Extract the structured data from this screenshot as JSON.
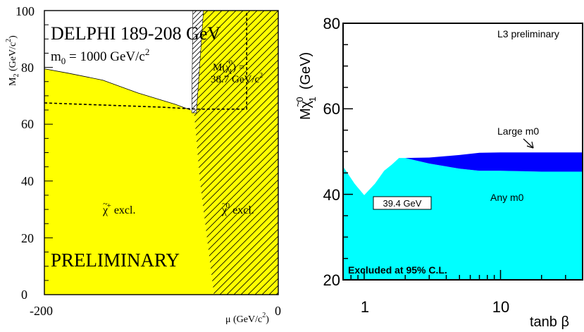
{
  "chart_data": [
    {
      "type": "area",
      "title": "DELPHI 189-208 GeV",
      "subtitle_prefix": "m",
      "subtitle_sub": "0",
      "subtitle_rest": " = 1000 GeV/c",
      "subtitle_sup": "2",
      "xlabel": "μ (GeV/c",
      "xlabel_sup": "2",
      "xlabel_end": ")",
      "ylabel": "M",
      "ylabel_sub": "2",
      "ylabel_rest": " (GeV/c",
      "ylabel_sup": "2",
      "ylabel_end": ")",
      "xlim": [
        -200,
        0
      ],
      "ylim": [
        0,
        100
      ],
      "xticks": [
        "-200",
        "0"
      ],
      "yticks": [
        "0",
        "20",
        "40",
        "60",
        "80",
        "100"
      ],
      "grid": false,
      "regions": [
        {
          "name": "chargino-excl",
          "color": "#ffff00",
          "label_main": "χ",
          "label_mark": "~",
          "label_sup": "+",
          "label_rest": " excl.",
          "boundary": [
            [
              -200,
              0
            ],
            [
              -200,
              79.5
            ],
            [
              -180,
              78
            ],
            [
              -150,
              75.5
            ],
            [
              -120,
              71
            ],
            [
              -88,
              67
            ],
            [
              -75,
              65
            ],
            [
              -72,
              64
            ],
            [
              -67,
              40
            ],
            [
              -58,
              10
            ],
            [
              -55,
              0
            ]
          ]
        },
        {
          "name": "neutralino-excl",
          "color": "#ffff00",
          "hatch": true,
          "label_main": "χ",
          "label_mark": "~",
          "label_sup": "0",
          "label_rest": " excl.",
          "boundary": [
            [
              -72,
              64
            ],
            [
              -64,
              100
            ],
            [
              0,
              100
            ],
            [
              0,
              0
            ],
            [
              -55,
              0
            ],
            [
              -58,
              10
            ],
            [
              -67,
              40
            ]
          ]
        },
        {
          "name": "narrow-band",
          "color": "#ffffff",
          "hatch": true,
          "boundary": [
            [
              -73,
              100
            ],
            [
              -64,
              100
            ],
            [
              -70,
              64
            ],
            [
              -74,
              64
            ]
          ]
        }
      ],
      "contours": [
        {
          "name": "M(χ1 0) = 38.7 GeV/c2",
          "style": "dashed",
          "points": [
            [
              -200,
              67.5
            ],
            [
              -100,
              66
            ],
            [
              -70,
              65.3
            ],
            [
              -27,
              65.3
            ],
            [
              -27,
              100
            ]
          ]
        }
      ],
      "annotations": {
        "contour_line1_prefix": "M(",
        "contour_line1_main": "χ",
        "contour_line1_mark": "~",
        "contour_line1_sup": "0",
        "contour_line1_sub": "1",
        "contour_line1_end": ") =",
        "contour_line2": "38.7 GeV/c",
        "contour_line2_sup": "2",
        "preliminary": "PRELIMINARY"
      }
    },
    {
      "type": "area",
      "title": "L3 preliminary",
      "xlabel": "tanb β",
      "ylabel_prefix": "M",
      "ylabel_main": "χ",
      "ylabel_mark": "~",
      "ylabel_sup": "0",
      "ylabel_sub": "1",
      "ylabel_unit": "(GeV)",
      "xscale": "log",
      "xlim": [
        0.7,
        40
      ],
      "ylim": [
        20,
        80
      ],
      "xticks": [
        "1",
        "10"
      ],
      "yticks": [
        "20",
        "40",
        "60",
        "80"
      ],
      "grid": false,
      "series": [
        {
          "name": "Any m0",
          "color": "#00ffff",
          "x": [
            0.7,
            0.85,
            1.0,
            1.2,
            1.4,
            1.6,
            1.8,
            2.0,
            3,
            5,
            7,
            10,
            20,
            40
          ],
          "y": [
            46.5,
            42.5,
            39.8,
            42.5,
            45.5,
            47,
            48.5,
            48.5,
            47.2,
            46,
            45.5,
            45.5,
            45.3,
            45.3
          ]
        },
        {
          "name": "Large m0",
          "color": "#0000ff",
          "x": [
            2.0,
            3,
            5,
            7,
            10,
            20,
            40
          ],
          "y": [
            48.5,
            48.6,
            49.2,
            49.7,
            49.8,
            49.8,
            49.8
          ]
        }
      ],
      "annotations": {
        "minimum_label": "39.4 GeV",
        "excluded_label": "Excluded at 95% C.L.",
        "large_m0": "Large m0",
        "any_m0": "Any m0"
      }
    }
  ]
}
